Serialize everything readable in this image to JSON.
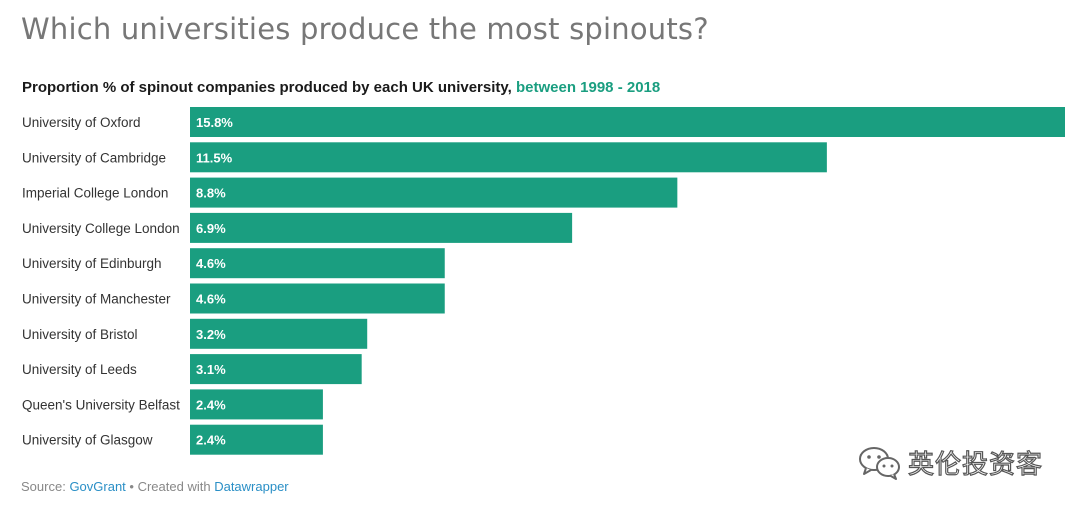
{
  "header": {
    "title": "Which universities produce the most spinouts?",
    "subtitle_main": "Proportion % of spinout companies produced by each UK university,",
    "subtitle_highlight": "between 1998 - 2018"
  },
  "footer": {
    "source_label": "Source:",
    "source_name": "GovGrant",
    "created_with": "• Created with",
    "tool_name": "Datawrapper"
  },
  "watermark": {
    "text": "英伦投资客"
  },
  "colors": {
    "bar": "#1a9e80",
    "highlight": "#1a9e80",
    "link": "#2a8fc6"
  },
  "chart_data": {
    "type": "bar",
    "orientation": "horizontal",
    "title": "Which universities produce the most spinouts?",
    "subtitle": "Proportion % of spinout companies produced by each UK university, between 1998 - 2018",
    "categories": [
      "University of Oxford",
      "University of Cambridge",
      "Imperial College London",
      "University College London",
      "University of Edinburgh",
      "University of Manchester",
      "University of Bristol",
      "University of Leeds",
      "Queen's University Belfast",
      "University of Glasgow"
    ],
    "values": [
      15.8,
      11.5,
      8.8,
      6.9,
      4.6,
      4.6,
      3.2,
      3.1,
      2.4,
      2.4
    ],
    "value_labels": [
      "15.8%",
      "11.5%",
      "8.8%",
      "6.9%",
      "4.6%",
      "4.6%",
      "3.2%",
      "3.1%",
      "2.4%",
      "2.4%"
    ],
    "unit": "%",
    "xlim": [
      0,
      15.8
    ],
    "grid": false,
    "legend": "none"
  }
}
